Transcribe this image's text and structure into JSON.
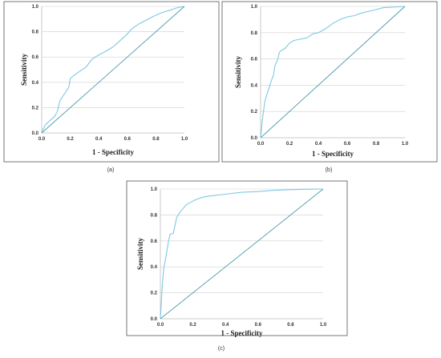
{
  "chart_data": [
    {
      "type": "line",
      "panel": "a",
      "caption": "(a)",
      "xlabel": "1 - Specificity",
      "ylabel": "Sensitivity",
      "xlim": [
        0,
        1
      ],
      "ylim": [
        0,
        1
      ],
      "x_ticks": [
        "0.0",
        "0.2",
        "0.4",
        "0.6",
        "0.8",
        "1.0"
      ],
      "y_ticks": [
        "0.0",
        "0.2",
        "0.4",
        "0.6",
        "0.8",
        "1.0"
      ],
      "grid": "horizontal",
      "series": [
        {
          "color": "#7ec8e3",
          "points": [
            [
              0,
              0
            ],
            [
              0.01,
              0.03
            ],
            [
              0.03,
              0.07
            ],
            [
              0.06,
              0.1
            ],
            [
              0.09,
              0.13
            ],
            [
              0.11,
              0.17
            ],
            [
              0.12,
              0.22
            ],
            [
              0.13,
              0.26
            ],
            [
              0.16,
              0.31
            ],
            [
              0.19,
              0.36
            ],
            [
              0.2,
              0.43
            ],
            [
              0.22,
              0.45
            ],
            [
              0.27,
              0.49
            ],
            [
              0.31,
              0.52
            ],
            [
              0.35,
              0.58
            ],
            [
              0.39,
              0.61
            ],
            [
              0.44,
              0.64
            ],
            [
              0.5,
              0.68
            ],
            [
              0.54,
              0.72
            ],
            [
              0.59,
              0.77
            ],
            [
              0.63,
              0.82
            ],
            [
              0.68,
              0.86
            ],
            [
              0.73,
              0.89
            ],
            [
              0.78,
              0.92
            ],
            [
              0.84,
              0.95
            ],
            [
              0.9,
              0.97
            ],
            [
              0.95,
              0.99
            ],
            [
              1,
              1
            ]
          ]
        },
        {
          "color": "#4a9aab",
          "points": [
            [
              0,
              0
            ],
            [
              1,
              1
            ]
          ]
        }
      ]
    },
    {
      "type": "line",
      "panel": "b",
      "caption": "(b)",
      "xlabel": "1 - Specificity",
      "ylabel": "Sensitivity",
      "xlim": [
        0,
        1
      ],
      "ylim": [
        0,
        1
      ],
      "x_ticks": [
        "0.0",
        "0.2",
        "0.4",
        "0.6",
        "0.8",
        "1.0"
      ],
      "y_ticks": [
        "0.0",
        "0.2",
        "0.4",
        "0.6",
        "0.8",
        "1.0"
      ],
      "grid": "horizontal",
      "series": [
        {
          "color": "#7ec8e3",
          "points": [
            [
              0,
              0
            ],
            [
              0.005,
              0.05
            ],
            [
              0.01,
              0.12
            ],
            [
              0.02,
              0.2
            ],
            [
              0.03,
              0.28
            ],
            [
              0.05,
              0.35
            ],
            [
              0.07,
              0.42
            ],
            [
              0.09,
              0.48
            ],
            [
              0.1,
              0.55
            ],
            [
              0.12,
              0.6
            ],
            [
              0.13,
              0.65
            ],
            [
              0.15,
              0.67
            ],
            [
              0.17,
              0.68
            ],
            [
              0.2,
              0.72
            ],
            [
              0.23,
              0.74
            ],
            [
              0.27,
              0.75
            ],
            [
              0.32,
              0.76
            ],
            [
              0.36,
              0.79
            ],
            [
              0.4,
              0.8
            ],
            [
              0.45,
              0.83
            ],
            [
              0.5,
              0.87
            ],
            [
              0.55,
              0.9
            ],
            [
              0.6,
              0.92
            ],
            [
              0.65,
              0.93
            ],
            [
              0.7,
              0.95
            ],
            [
              0.78,
              0.97
            ],
            [
              0.85,
              0.99
            ],
            [
              1,
              1
            ]
          ]
        },
        {
          "color": "#4a9aab",
          "points": [
            [
              0,
              0
            ],
            [
              1,
              1
            ]
          ]
        }
      ]
    },
    {
      "type": "line",
      "panel": "c",
      "caption": "(c)",
      "xlabel": "1 - Specificity",
      "ylabel": "Sensitivity",
      "xlim": [
        0,
        1
      ],
      "ylim": [
        0,
        1
      ],
      "x_ticks": [
        "0.0",
        "0.2",
        "0.4",
        "0.6",
        "0.8",
        "1.0"
      ],
      "y_ticks": [
        "0.0",
        "0.2",
        "0.4",
        "0.6",
        "0.8",
        "1.0"
      ],
      "grid": "horizontal",
      "series": [
        {
          "color": "#7ec8e3",
          "points": [
            [
              0,
              0
            ],
            [
              0.005,
              0.1
            ],
            [
              0.01,
              0.22
            ],
            [
              0.015,
              0.3
            ],
            [
              0.02,
              0.38
            ],
            [
              0.03,
              0.45
            ],
            [
              0.04,
              0.52
            ],
            [
              0.05,
              0.6
            ],
            [
              0.06,
              0.65
            ],
            [
              0.08,
              0.66
            ],
            [
              0.09,
              0.72
            ],
            [
              0.1,
              0.78
            ],
            [
              0.12,
              0.82
            ],
            [
              0.14,
              0.85
            ],
            [
              0.16,
              0.88
            ],
            [
              0.19,
              0.9
            ],
            [
              0.22,
              0.92
            ],
            [
              0.27,
              0.94
            ],
            [
              0.33,
              0.95
            ],
            [
              0.4,
              0.96
            ],
            [
              0.5,
              0.975
            ],
            [
              0.6,
              0.98
            ],
            [
              0.7,
              0.99
            ],
            [
              0.8,
              0.995
            ],
            [
              0.9,
              0.998
            ],
            [
              1,
              1
            ]
          ]
        },
        {
          "color": "#4a9aab",
          "points": [
            [
              0,
              0
            ],
            [
              1,
              1
            ]
          ]
        }
      ]
    }
  ]
}
